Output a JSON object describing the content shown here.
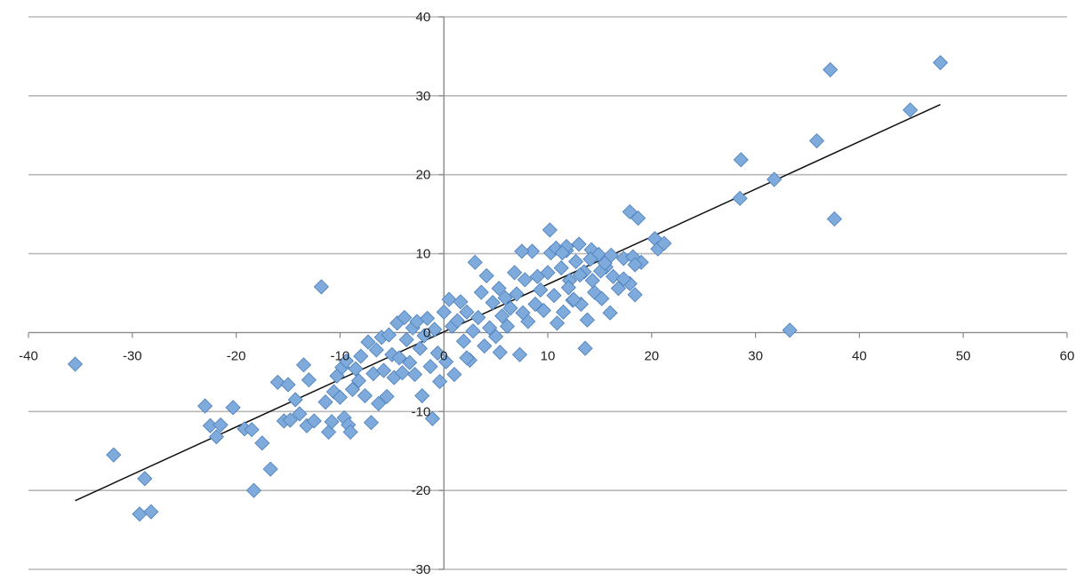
{
  "chart_data": {
    "type": "scatter",
    "title": "",
    "xlabel": "",
    "ylabel": "",
    "xlim": [
      -40,
      60
    ],
    "ylim": [
      -30,
      40
    ],
    "x_ticks": [
      -40,
      -30,
      -20,
      -10,
      0,
      10,
      20,
      30,
      40,
      50,
      60
    ],
    "y_ticks": [
      -30,
      -20,
      -10,
      0,
      10,
      20,
      30,
      40
    ],
    "grid": "horizontal",
    "legend": "none",
    "colors": {
      "marker_fill": "#7eaadc",
      "marker_edge": "#4a7ebb",
      "trendline": "#111111",
      "grid": "#b8b8b8"
    },
    "marker": "diamond",
    "trendline": {
      "type": "linear",
      "x": [
        -35.5,
        47.8
      ],
      "y": [
        -21.3,
        28.9
      ]
    },
    "series": [
      {
        "points": [
          [
            -35.5,
            -4
          ],
          [
            -31.8,
            -15.5
          ],
          [
            -29.3,
            -23
          ],
          [
            -28.8,
            -18.5
          ],
          [
            -28.2,
            -22.7
          ],
          [
            -23,
            -9.3
          ],
          [
            -22.5,
            -11.8
          ],
          [
            -21.9,
            -13.2
          ],
          [
            -21.5,
            -11.7
          ],
          [
            -20.3,
            -9.5
          ],
          [
            -19.2,
            -12.2
          ],
          [
            -18.5,
            -12.3
          ],
          [
            -18.3,
            -20
          ],
          [
            -17.5,
            -14
          ],
          [
            -16.7,
            -17.3
          ],
          [
            -16,
            -6.3
          ],
          [
            -15.4,
            -11.2
          ],
          [
            -15,
            -6.6
          ],
          [
            -14.8,
            -11.1
          ],
          [
            -14.3,
            -8.5
          ],
          [
            -13.9,
            -10.3
          ],
          [
            -13.5,
            -4.1
          ],
          [
            -13.2,
            -11.8
          ],
          [
            -13,
            -6
          ],
          [
            -12.5,
            -11.2
          ],
          [
            -11.8,
            5.8
          ],
          [
            -11.4,
            -8.8
          ],
          [
            -11.1,
            -12.6
          ],
          [
            -10.8,
            -11.3
          ],
          [
            -10.6,
            -7.5
          ],
          [
            -10.3,
            -5.5
          ],
          [
            -10,
            -8.2
          ],
          [
            -9.8,
            -4.4
          ],
          [
            -9.6,
            -10.8
          ],
          [
            -9.4,
            -3.6
          ],
          [
            -9.2,
            -11.7
          ],
          [
            -9,
            -12.6
          ],
          [
            -8.8,
            -7.2
          ],
          [
            -8.5,
            -4.6
          ],
          [
            -8.2,
            -6.1
          ],
          [
            -8,
            -3
          ],
          [
            -7.6,
            -8
          ],
          [
            -7.3,
            -1.2
          ],
          [
            -7,
            -11.4
          ],
          [
            -6.8,
            -5.2
          ],
          [
            -6.5,
            -2.2
          ],
          [
            -6.3,
            -9
          ],
          [
            -6,
            -0.6
          ],
          [
            -5.8,
            -4.8
          ],
          [
            -5.5,
            -8.1
          ],
          [
            -5.3,
            -0.3
          ],
          [
            -5,
            -2.8
          ],
          [
            -4.8,
            -5.7
          ],
          [
            -4.5,
            1.2
          ],
          [
            -4.3,
            -3.2
          ],
          [
            -4,
            -5.1
          ],
          [
            -3.8,
            1.9
          ],
          [
            -3.6,
            -0.9
          ],
          [
            -3.3,
            -3.8
          ],
          [
            -3,
            0.6
          ],
          [
            -2.8,
            -5.3
          ],
          [
            -2.6,
            1.4
          ],
          [
            -2.3,
            -2
          ],
          [
            -2.1,
            -8
          ],
          [
            -1.9,
            -0.4
          ],
          [
            -1.6,
            1.8
          ],
          [
            -1.3,
            -4.3
          ],
          [
            -1.1,
            -10.9
          ],
          [
            -0.9,
            0.4
          ],
          [
            -0.6,
            -2.6
          ],
          [
            -0.4,
            -6.2
          ],
          [
            0,
            2.6
          ],
          [
            0.2,
            -3.7
          ],
          [
            0.5,
            4.2
          ],
          [
            0.8,
            0.8
          ],
          [
            1,
            -5.3
          ],
          [
            1.3,
            1.5
          ],
          [
            1.6,
            3.9
          ],
          [
            1.9,
            -1.1
          ],
          [
            2.2,
            2.6
          ],
          [
            2.5,
            -3.5
          ],
          [
            2.8,
            0.2
          ],
          [
            3,
            8.9
          ],
          [
            3.3,
            1.9
          ],
          [
            3.6,
            5.1
          ],
          [
            3.9,
            -1.7
          ],
          [
            4.1,
            7.2
          ],
          [
            4.4,
            0.6
          ],
          [
            4.7,
            3.8
          ],
          [
            5,
            -0.5
          ],
          [
            5.3,
            5.6
          ],
          [
            5.6,
            2.1
          ],
          [
            5.9,
            4.4
          ],
          [
            6.1,
            0.8
          ],
          [
            6.4,
            3.1
          ],
          [
            6.8,
            7.6
          ],
          [
            7,
            4.9
          ],
          [
            7.3,
            -2.8
          ],
          [
            7.6,
            2.5
          ],
          [
            7.8,
            6.7
          ],
          [
            8.1,
            1.4
          ],
          [
            8.5,
            10.3
          ],
          [
            8.8,
            3.6
          ],
          [
            9,
            7.1
          ],
          [
            9.3,
            5.4
          ],
          [
            9.6,
            2.8
          ],
          [
            10,
            7.6
          ],
          [
            10.3,
            10.1
          ],
          [
            10.6,
            4.7
          ],
          [
            10.9,
            1.2
          ],
          [
            11.3,
            8.2
          ],
          [
            11.5,
            2.6
          ],
          [
            11.8,
            10.4
          ],
          [
            12.1,
            6.6
          ],
          [
            12.4,
            4.1
          ],
          [
            12.7,
            9
          ],
          [
            13,
            11.2
          ],
          [
            13.2,
            3.6
          ],
          [
            13.5,
            7.7
          ],
          [
            13.8,
            1.6
          ],
          [
            14.2,
            10.5
          ],
          [
            14.5,
            5.1
          ],
          [
            14.9,
            9.9
          ],
          [
            15.2,
            4.3
          ],
          [
            15.6,
            8.3
          ],
          [
            16,
            2.5
          ],
          [
            16.3,
            7.1
          ],
          [
            16.8,
            5.6
          ],
          [
            17.3,
            9.4
          ],
          [
            17.9,
            6.2
          ],
          [
            18.4,
            4.8
          ],
          [
            19,
            8.9
          ],
          [
            10.2,
            13
          ],
          [
            10.8,
            10.7
          ],
          [
            11.8,
            10.9
          ],
          [
            11.4,
            10.1
          ],
          [
            12,
            5.7
          ],
          [
            12.5,
            4.2
          ],
          [
            13.1,
            7.3
          ],
          [
            13.6,
            -2
          ],
          [
            14.1,
            9.3
          ],
          [
            14.3,
            6.6
          ],
          [
            15.1,
            7.8
          ],
          [
            15.5,
            8.8
          ],
          [
            16.1,
            9.8
          ],
          [
            17.3,
            6.8
          ],
          [
            17.9,
            15.3
          ],
          [
            18.2,
            9.6
          ],
          [
            18.4,
            8.6
          ],
          [
            18.7,
            14.5
          ],
          [
            20.3,
            11.9
          ],
          [
            20.6,
            10.6
          ],
          [
            21.2,
            11.3
          ],
          [
            28.5,
            17
          ],
          [
            28.6,
            21.9
          ],
          [
            31.8,
            19.4
          ],
          [
            33.3,
            0.3
          ],
          [
            35.9,
            24.3
          ],
          [
            37.2,
            33.3
          ],
          [
            37.6,
            14.4
          ],
          [
            44.9,
            28.2
          ],
          [
            47.8,
            34.2
          ],
          [
            5.4,
            -2.5
          ],
          [
            7.5,
            10.3
          ],
          [
            2.2,
            -3.2
          ]
        ]
      }
    ]
  }
}
